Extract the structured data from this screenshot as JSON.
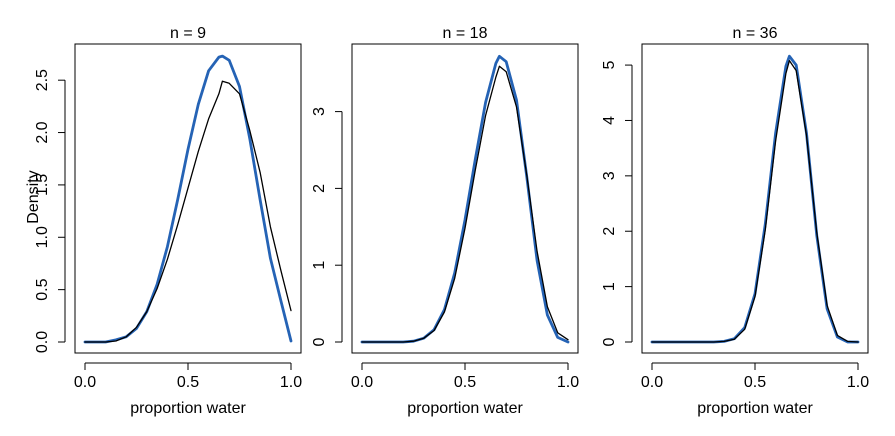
{
  "colors": {
    "exact": "#000000",
    "approximation": "#2563b5"
  },
  "chart_data": [
    {
      "type": "line",
      "title": "n = 9",
      "xlabel": "proportion water",
      "ylabel": "Density",
      "xlim": [
        0,
        1
      ],
      "ylim": [
        0,
        2.75
      ],
      "x_ticks": [
        "0.0",
        "0.5",
        "1.0"
      ],
      "y_ticks": [
        "0.0",
        "0.5",
        "1.0",
        "1.5",
        "2.0",
        "2.5"
      ],
      "series": [
        {
          "style": "exact",
          "x": [
            0,
            0.05,
            0.1,
            0.15,
            0.2,
            0.25,
            0.3,
            0.35,
            0.4,
            0.45,
            0.5,
            0.55,
            0.6,
            0.65,
            0.667,
            0.7,
            0.75,
            0.8,
            0.85,
            0.9,
            0.95,
            1.0
          ],
          "y": [
            0,
            0.0,
            0.0,
            0.01,
            0.05,
            0.14,
            0.29,
            0.51,
            0.79,
            1.12,
            1.47,
            1.82,
            2.13,
            2.37,
            2.49,
            2.47,
            2.37,
            2.02,
            1.62,
            1.1,
            0.69,
            0.3
          ]
        },
        {
          "style": "approximation",
          "x": [
            0,
            0.05,
            0.1,
            0.15,
            0.2,
            0.25,
            0.3,
            0.35,
            0.4,
            0.45,
            0.5,
            0.55,
            0.6,
            0.65,
            0.667,
            0.7,
            0.75,
            0.8,
            0.85,
            0.9,
            0.95,
            1.0
          ],
          "y": [
            0,
            0.0,
            0.0,
            0.02,
            0.05,
            0.13,
            0.29,
            0.55,
            0.91,
            1.36,
            1.84,
            2.27,
            2.59,
            2.72,
            2.73,
            2.69,
            2.44,
            1.94,
            1.36,
            0.8,
            0.4,
            0.01
          ]
        }
      ]
    },
    {
      "type": "line",
      "title": "n = 18",
      "xlabel": "proportion water",
      "xlim": [
        0,
        1
      ],
      "ylim": [
        0,
        3.75
      ],
      "x_ticks": [
        "0.0",
        "0.5",
        "1.0"
      ],
      "y_ticks": [
        "0",
        "1",
        "2",
        "3"
      ],
      "series": [
        {
          "style": "exact",
          "x": [
            0,
            0.1,
            0.2,
            0.25,
            0.3,
            0.35,
            0.4,
            0.45,
            0.5,
            0.55,
            0.6,
            0.65,
            0.667,
            0.7,
            0.75,
            0.8,
            0.85,
            0.9,
            0.95,
            1.0
          ],
          "y": [
            0,
            0.0,
            0.0,
            0.01,
            0.05,
            0.15,
            0.39,
            0.83,
            1.48,
            2.24,
            2.95,
            3.45,
            3.59,
            3.52,
            3.06,
            2.17,
            1.18,
            0.46,
            0.12,
            0.03
          ]
        },
        {
          "style": "approximation",
          "x": [
            0,
            0.1,
            0.2,
            0.25,
            0.3,
            0.35,
            0.4,
            0.45,
            0.5,
            0.55,
            0.6,
            0.65,
            0.667,
            0.7,
            0.75,
            0.8,
            0.85,
            0.9,
            0.95,
            1.0
          ],
          "y": [
            0,
            0.0,
            0.0,
            0.01,
            0.05,
            0.16,
            0.42,
            0.9,
            1.59,
            2.38,
            3.12,
            3.63,
            3.72,
            3.65,
            3.15,
            2.15,
            1.06,
            0.35,
            0.06,
            0.0
          ]
        }
      ]
    },
    {
      "type": "line",
      "title": "n = 36",
      "xlabel": "proportion water",
      "xlim": [
        0,
        1
      ],
      "ylim": [
        0,
        5.2
      ],
      "x_ticks": [
        "0.0",
        "0.5",
        "1.0"
      ],
      "y_ticks": [
        "0",
        "1",
        "2",
        "3",
        "4",
        "5"
      ],
      "series": [
        {
          "style": "exact",
          "x": [
            0,
            0.3,
            0.35,
            0.4,
            0.45,
            0.5,
            0.55,
            0.6,
            0.65,
            0.667,
            0.7,
            0.75,
            0.8,
            0.85,
            0.9,
            0.95,
            1.0
          ],
          "y": [
            0,
            0.0,
            0.01,
            0.05,
            0.23,
            0.82,
            2.03,
            3.63,
            4.85,
            5.08,
            4.9,
            3.73,
            1.97,
            0.66,
            0.12,
            0.01,
            0.0
          ]
        },
        {
          "style": "approximation",
          "x": [
            0,
            0.3,
            0.35,
            0.4,
            0.45,
            0.5,
            0.55,
            0.6,
            0.65,
            0.667,
            0.7,
            0.75,
            0.8,
            0.85,
            0.9,
            0.95,
            1.0
          ],
          "y": [
            0,
            0.0,
            0.01,
            0.06,
            0.26,
            0.87,
            2.13,
            3.77,
            4.98,
            5.16,
            5.0,
            3.77,
            1.92,
            0.6,
            0.09,
            0.0,
            0.0
          ]
        }
      ]
    }
  ]
}
